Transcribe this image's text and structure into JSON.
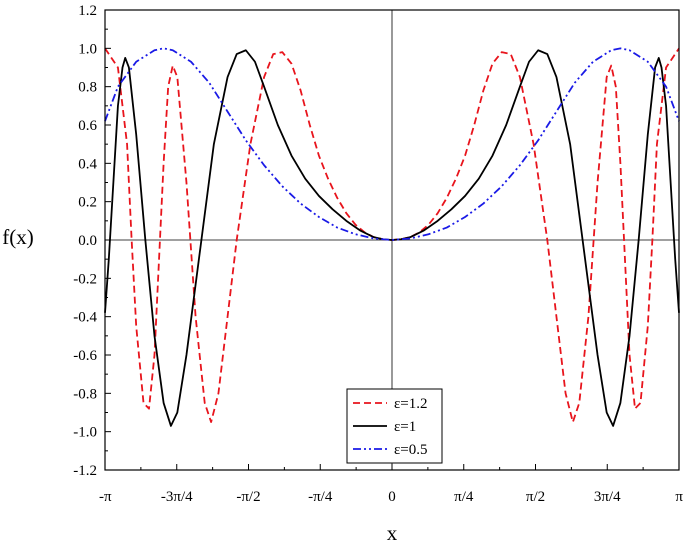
{
  "chart_data": {
    "type": "line",
    "xlabel": "x",
    "ylabel": "f(x)",
    "xlim": [
      -3.14159,
      3.14159
    ],
    "ylim": [
      -1.2,
      1.2
    ],
    "x_ticks": [
      {
        "value": -3.14159,
        "label": "-π"
      },
      {
        "value": -2.35619,
        "label": "-3π/4"
      },
      {
        "value": -1.5708,
        "label": "-π/2"
      },
      {
        "value": -0.7854,
        "label": "-π/4"
      },
      {
        "value": 0,
        "label": "0"
      },
      {
        "value": 0.7854,
        "label": "π/4"
      },
      {
        "value": 1.5708,
        "label": "π/2"
      },
      {
        "value": 2.35619,
        "label": "3π/4"
      },
      {
        "value": 3.14159,
        "label": "π"
      }
    ],
    "y_ticks": [
      {
        "value": -1.2,
        "label": "-1.2"
      },
      {
        "value": -1.0,
        "label": "-1.0"
      },
      {
        "value": -0.8,
        "label": "-0.8"
      },
      {
        "value": -0.6,
        "label": "-0.6"
      },
      {
        "value": -0.4,
        "label": "-0.4"
      },
      {
        "value": -0.2,
        "label": "-0.2"
      },
      {
        "value": 0.0,
        "label": "0.0"
      },
      {
        "value": 0.2,
        "label": "0.2"
      },
      {
        "value": 0.4,
        "label": "0.4"
      },
      {
        "value": 0.6,
        "label": "0.6"
      },
      {
        "value": 0.8,
        "label": "0.8"
      },
      {
        "value": 1.0,
        "label": "1.0"
      },
      {
        "value": 1.2,
        "label": "1.2"
      }
    ],
    "reference_lines": {
      "x0": true,
      "y0": true
    },
    "grid": false,
    "legend_position": "bottom-center",
    "series": [
      {
        "name": "ε=1.2",
        "color": "#e8141c",
        "dash": "dashed",
        "points": [
          [
            -3.1416,
            1.0
          ],
          [
            -3.0,
            0.9
          ],
          [
            -2.9,
            0.5
          ],
          [
            -2.85,
            0.0
          ],
          [
            -2.8,
            -0.45
          ],
          [
            -2.72,
            -0.85
          ],
          [
            -2.66,
            -0.88
          ],
          [
            -2.6,
            -0.6
          ],
          [
            -2.55,
            -0.1
          ],
          [
            -2.5,
            0.4
          ],
          [
            -2.45,
            0.8
          ],
          [
            -2.4,
            0.91
          ],
          [
            -2.35,
            0.85
          ],
          [
            -2.25,
            0.3
          ],
          [
            -2.15,
            -0.4
          ],
          [
            -2.05,
            -0.85
          ],
          [
            -1.98,
            -0.95
          ],
          [
            -1.9,
            -0.8
          ],
          [
            -1.8,
            -0.4
          ],
          [
            -1.7,
            0.0
          ],
          [
            -1.55,
            0.5
          ],
          [
            -1.4,
            0.85
          ],
          [
            -1.3,
            0.97
          ],
          [
            -1.2,
            0.98
          ],
          [
            -1.1,
            0.92
          ],
          [
            -1.0,
            0.78
          ],
          [
            -0.9,
            0.6
          ],
          [
            -0.8,
            0.44
          ],
          [
            -0.7,
            0.32
          ],
          [
            -0.6,
            0.22
          ],
          [
            -0.5,
            0.14
          ],
          [
            -0.4,
            0.08
          ],
          [
            -0.3,
            0.04
          ],
          [
            -0.2,
            0.015
          ],
          [
            -0.1,
            0.004
          ],
          [
            0.0,
            0.0
          ],
          [
            0.1,
            0.004
          ],
          [
            0.2,
            0.015
          ],
          [
            0.3,
            0.04
          ],
          [
            0.4,
            0.08
          ],
          [
            0.5,
            0.14
          ],
          [
            0.6,
            0.22
          ],
          [
            0.7,
            0.32
          ],
          [
            0.8,
            0.44
          ],
          [
            0.9,
            0.6
          ],
          [
            1.0,
            0.78
          ],
          [
            1.1,
            0.92
          ],
          [
            1.2,
            0.98
          ],
          [
            1.3,
            0.97
          ],
          [
            1.4,
            0.85
          ],
          [
            1.55,
            0.5
          ],
          [
            1.7,
            0.0
          ],
          [
            1.8,
            -0.4
          ],
          [
            1.9,
            -0.8
          ],
          [
            1.98,
            -0.95
          ],
          [
            2.05,
            -0.85
          ],
          [
            2.15,
            -0.4
          ],
          [
            2.25,
            0.3
          ],
          [
            2.35,
            0.85
          ],
          [
            2.4,
            0.91
          ],
          [
            2.45,
            0.8
          ],
          [
            2.5,
            0.4
          ],
          [
            2.55,
            -0.1
          ],
          [
            2.6,
            -0.6
          ],
          [
            2.66,
            -0.88
          ],
          [
            2.72,
            -0.85
          ],
          [
            2.8,
            -0.45
          ],
          [
            2.85,
            0.0
          ],
          [
            2.9,
            0.5
          ],
          [
            3.0,
            0.9
          ],
          [
            3.1416,
            1.0
          ]
        ]
      },
      {
        "name": "ε=1",
        "color": "#000000",
        "dash": "solid",
        "points": [
          [
            -3.1416,
            -0.38
          ],
          [
            -3.1,
            -0.1
          ],
          [
            -3.05,
            0.3
          ],
          [
            -3.0,
            0.7
          ],
          [
            -2.95,
            0.9
          ],
          [
            -2.92,
            0.95
          ],
          [
            -2.88,
            0.9
          ],
          [
            -2.8,
            0.55
          ],
          [
            -2.7,
            0.0
          ],
          [
            -2.6,
            -0.5
          ],
          [
            -2.5,
            -0.85
          ],
          [
            -2.42,
            -0.97
          ],
          [
            -2.35,
            -0.9
          ],
          [
            -2.25,
            -0.6
          ],
          [
            -2.1,
            -0.05
          ],
          [
            -1.95,
            0.5
          ],
          [
            -1.8,
            0.85
          ],
          [
            -1.7,
            0.97
          ],
          [
            -1.6,
            0.99
          ],
          [
            -1.5,
            0.93
          ],
          [
            -1.4,
            0.8
          ],
          [
            -1.25,
            0.6
          ],
          [
            -1.1,
            0.44
          ],
          [
            -0.95,
            0.32
          ],
          [
            -0.8,
            0.23
          ],
          [
            -0.65,
            0.16
          ],
          [
            -0.5,
            0.1
          ],
          [
            -0.35,
            0.05
          ],
          [
            -0.2,
            0.015
          ],
          [
            -0.1,
            0.004
          ],
          [
            0.0,
            0.0
          ],
          [
            0.1,
            0.004
          ],
          [
            0.2,
            0.015
          ],
          [
            0.35,
            0.05
          ],
          [
            0.5,
            0.1
          ],
          [
            0.65,
            0.16
          ],
          [
            0.8,
            0.23
          ],
          [
            0.95,
            0.32
          ],
          [
            1.1,
            0.44
          ],
          [
            1.25,
            0.6
          ],
          [
            1.4,
            0.8
          ],
          [
            1.5,
            0.93
          ],
          [
            1.6,
            0.99
          ],
          [
            1.7,
            0.97
          ],
          [
            1.8,
            0.85
          ],
          [
            1.95,
            0.5
          ],
          [
            2.1,
            -0.05
          ],
          [
            2.25,
            -0.6
          ],
          [
            2.35,
            -0.9
          ],
          [
            2.42,
            -0.97
          ],
          [
            2.5,
            -0.85
          ],
          [
            2.6,
            -0.5
          ],
          [
            2.7,
            0.0
          ],
          [
            2.8,
            0.55
          ],
          [
            2.88,
            0.9
          ],
          [
            2.92,
            0.95
          ],
          [
            2.95,
            0.9
          ],
          [
            3.0,
            0.7
          ],
          [
            3.05,
            0.3
          ],
          [
            3.1,
            -0.1
          ],
          [
            3.1416,
            -0.38
          ]
        ]
      },
      {
        "name": "ε=0.5",
        "color": "#1a1ae6",
        "dash": "dash-dot-dot",
        "points": [
          [
            -3.1416,
            0.62
          ],
          [
            -3.0,
            0.8
          ],
          [
            -2.8,
            0.93
          ],
          [
            -2.6,
            0.99
          ],
          [
            -2.5,
            1.0
          ],
          [
            -2.4,
            0.99
          ],
          [
            -2.2,
            0.93
          ],
          [
            -2.0,
            0.82
          ],
          [
            -1.8,
            0.67
          ],
          [
            -1.6,
            0.52
          ],
          [
            -1.4,
            0.39
          ],
          [
            -1.2,
            0.28
          ],
          [
            -1.0,
            0.19
          ],
          [
            -0.8,
            0.12
          ],
          [
            -0.6,
            0.065
          ],
          [
            -0.4,
            0.03
          ],
          [
            -0.2,
            0.008
          ],
          [
            0.0,
            0.0
          ],
          [
            0.2,
            0.008
          ],
          [
            0.4,
            0.03
          ],
          [
            0.6,
            0.065
          ],
          [
            0.8,
            0.12
          ],
          [
            1.0,
            0.19
          ],
          [
            1.2,
            0.28
          ],
          [
            1.4,
            0.39
          ],
          [
            1.6,
            0.52
          ],
          [
            1.8,
            0.67
          ],
          [
            2.0,
            0.82
          ],
          [
            2.2,
            0.93
          ],
          [
            2.4,
            0.99
          ],
          [
            2.5,
            1.0
          ],
          [
            2.6,
            0.99
          ],
          [
            2.8,
            0.93
          ],
          [
            3.0,
            0.8
          ],
          [
            3.1416,
            0.62
          ]
        ]
      }
    ]
  }
}
